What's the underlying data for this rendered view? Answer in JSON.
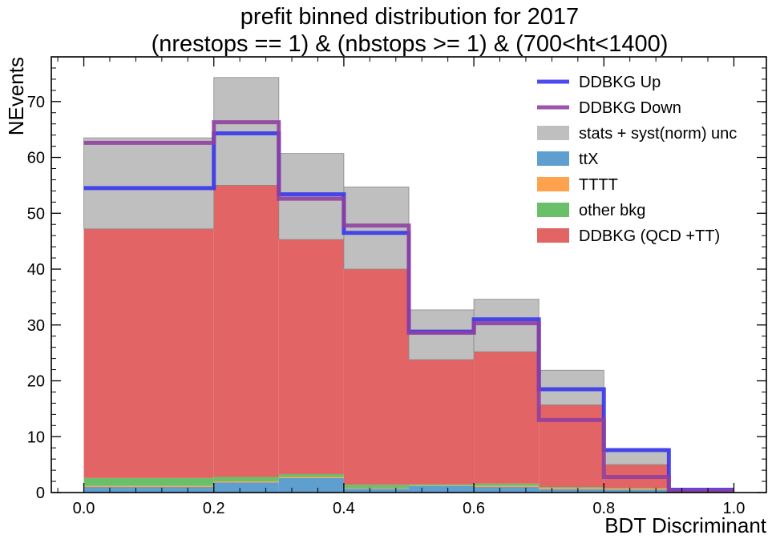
{
  "chart_data": {
    "type": "bar",
    "title": "prefit binned distribution for 2017",
    "subtitle": "(nrestops == 1) & (nbstops >= 1) & (700<ht<1400)",
    "xlabel": "BDT Discriminant",
    "ylabel": "NEvents",
    "xlim": [
      -0.05,
      1.05
    ],
    "ylim": [
      0,
      78
    ],
    "x_ticks": [
      "0.0",
      "0.2",
      "0.4",
      "0.6",
      "0.8",
      "1.0"
    ],
    "y_ticks": [
      "0",
      "10",
      "20",
      "30",
      "40",
      "50",
      "60",
      "70"
    ],
    "grid": false,
    "legend_position": "top-right",
    "bin_edges": [
      0.0,
      0.2,
      0.3,
      0.4,
      0.5,
      0.6,
      0.7,
      0.8,
      0.9,
      1.0
    ],
    "stack": [
      {
        "name": "ttX",
        "color": "#5f9fd0",
        "values": [
          1.0,
          1.8,
          2.6,
          0.7,
          1.2,
          1.0,
          0.6,
          0.5,
          0.1
        ]
      },
      {
        "name": "TTTT",
        "color": "#ffa24d",
        "values": [
          0.2,
          0.2,
          0.2,
          0.1,
          0.1,
          0.2,
          0.2,
          0.2,
          0.0
        ]
      },
      {
        "name": "other bkg",
        "color": "#6abf69",
        "values": [
          1.4,
          0.8,
          0.5,
          0.6,
          0.2,
          0.4,
          0.2,
          0.1,
          0.0
        ]
      },
      {
        "name": "DDBKG (QCD +TT)",
        "color": "#e36464",
        "values": [
          44.6,
          52.2,
          42.0,
          38.6,
          22.3,
          23.6,
          14.7,
          4.2,
          0.3
        ]
      }
    ],
    "uncertainty": {
      "name": "stats + syst(norm) unc",
      "color": "#a9a9a9",
      "lower": [
        47.2,
        55.0,
        45.3,
        40.0,
        23.8,
        25.2,
        15.7,
        5.0,
        0.3
      ],
      "upper": [
        63.5,
        74.3,
        60.7,
        54.7,
        32.7,
        34.6,
        21.9,
        7.8,
        0.5
      ]
    },
    "lines": [
      {
        "name": "DDBKG Up",
        "color": "#3333ee",
        "values": [
          54.5,
          64.3,
          53.4,
          46.5,
          28.8,
          31.0,
          18.5,
          7.6,
          0.5
        ]
      },
      {
        "name": "DDBKG Down",
        "color": "#8f3f9f",
        "values": [
          62.6,
          66.3,
          52.6,
          47.8,
          28.6,
          30.3,
          13.0,
          2.8,
          0.3
        ]
      }
    ],
    "legend": [
      "DDBKG Up",
      "DDBKG Down",
      "stats + syst(norm) unc",
      "ttX",
      "TTTT",
      "other bkg",
      "DDBKG (QCD +TT)"
    ]
  }
}
